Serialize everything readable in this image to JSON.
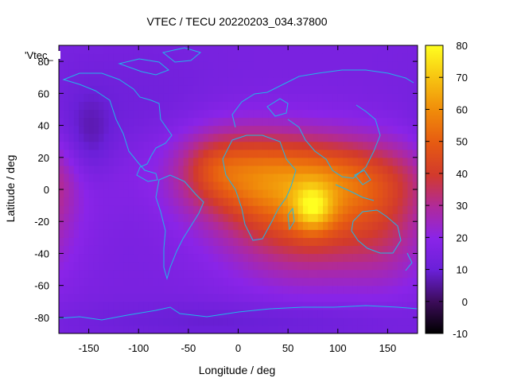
{
  "chart_data": {
    "type": "heatmap",
    "title": "VTEC / TECU 20220203_034.37800",
    "xlabel": "Longitude / deg",
    "ylabel": "Latitude / deg",
    "key_label": "'Vtec_",
    "xlim": [
      -180,
      180
    ],
    "ylim": [
      -90,
      90
    ],
    "xticks": [
      -150,
      -100,
      -50,
      0,
      50,
      100,
      150
    ],
    "yticks": [
      -80,
      -60,
      -40,
      -20,
      0,
      20,
      40,
      60,
      80
    ],
    "colorbar": {
      "range": [
        -10,
        80
      ],
      "ticks": [
        -10,
        0,
        10,
        20,
        30,
        40,
        50,
        60,
        70,
        80
      ],
      "palette": "black-purple-red-orange-yellow"
    },
    "grid": false,
    "background_level": 15,
    "features": [
      {
        "lon": 70,
        "lat": -15,
        "sx": 60,
        "sy": 28,
        "amp": 30
      },
      {
        "lon": 75,
        "lat": -12,
        "sx": 14,
        "sy": 10,
        "amp": 23
      },
      {
        "lon": 100,
        "lat": 8,
        "sx": 70,
        "sy": 18,
        "amp": 22
      },
      {
        "lon": -5,
        "lat": 12,
        "sx": 45,
        "sy": 20,
        "amp": 22
      },
      {
        "lon": -25,
        "lat": 15,
        "sx": 20,
        "sy": 12,
        "amp": 6
      },
      {
        "lon": 150,
        "lat": -30,
        "sx": 30,
        "sy": 25,
        "amp": 8
      },
      {
        "lon": -150,
        "lat": 28,
        "sx": 18,
        "sy": 22,
        "amp": -9
      },
      {
        "lon": 0,
        "lat": -82,
        "sx": 120,
        "sy": 8,
        "amp": -6
      },
      {
        "lon": -100,
        "lat": 55,
        "sx": 60,
        "sy": 25,
        "amp": -3
      }
    ]
  }
}
